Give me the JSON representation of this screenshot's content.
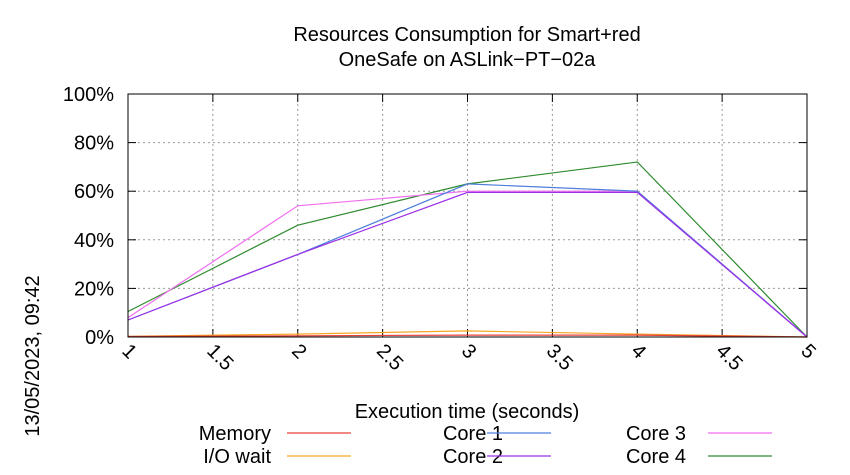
{
  "title_lines": [
    "Resources Consumption for Smart+red",
    "OneSafe on ASLink−PT−02a"
  ],
  "side_stamp": "13/05/2023, 09:42",
  "chart_data": {
    "type": "line",
    "title": "Resources Consumption for Smart+red OneSafe on ASLink−PT−02a",
    "xlabel": "Execution time (seconds)",
    "ylabel": "",
    "xlim": [
      1,
      5
    ],
    "ylim": [
      0,
      100
    ],
    "x_ticks": [
      "1",
      "1.5",
      "2",
      "2.5",
      "3",
      "3.5",
      "4",
      "4.5",
      "5"
    ],
    "y_ticks": [
      "0%",
      "20%",
      "40%",
      "60%",
      "80%",
      "100%"
    ],
    "grid": true,
    "legend_position": "bottom",
    "x": [
      1,
      2,
      3,
      4,
      5
    ],
    "series": [
      {
        "name": "Memory",
        "color": "#e8403a",
        "values": [
          0.2,
          0.5,
          0.8,
          0.8,
          0
        ]
      },
      {
        "name": "I/O wait",
        "color": "#f5a623",
        "values": [
          0.3,
          1.2,
          2.5,
          1.2,
          0
        ]
      },
      {
        "name": "Core 1",
        "color": "#4f7fdd",
        "values": [
          7,
          34,
          63,
          60,
          0
        ]
      },
      {
        "name": "Core 2",
        "color": "#9b30e6",
        "values": [
          7,
          34,
          59.5,
          59.5,
          0
        ]
      },
      {
        "name": "Core 3",
        "color": "#f06ef0",
        "values": [
          8,
          54,
          60,
          60,
          0
        ]
      },
      {
        "name": "Core 4",
        "color": "#2e8b2e",
        "values": [
          10.5,
          46,
          63,
          72,
          0
        ]
      }
    ]
  }
}
